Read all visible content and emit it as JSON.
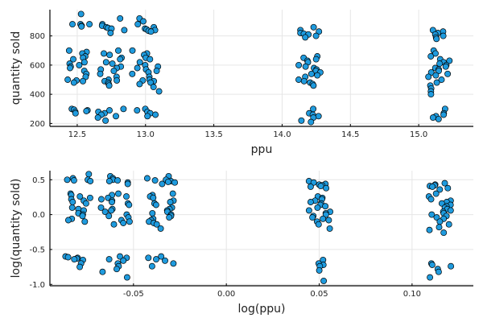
{
  "colors": {
    "marker": "#1f9bde",
    "marker_edge": "#000000",
    "grid": "#e6e6e6"
  },
  "chart_data": [
    {
      "type": "scatter",
      "title": "",
      "xlabel": "ppu",
      "ylabel": "quantity sold",
      "xlim": [
        12.3,
        15.4
      ],
      "ylim": [
        180,
        980
      ],
      "xticks": [
        12.5,
        13.0,
        13.5,
        14.0,
        14.5,
        15.0
      ],
      "xtick_labels": [
        "12.5",
        "13.0",
        "13.5",
        "14.0",
        "14.5",
        "15.0"
      ],
      "yticks": [
        200,
        400,
        600,
        800
      ],
      "ytick_labels": [
        "200",
        "400",
        "600",
        "800"
      ],
      "grid": true,
      "legend": "none",
      "point_groups": [
        {
          "cx": 12.5,
          "xs": 0.09,
          "ys": [
            950,
            880,
            880,
            880,
            870,
            865,
            700,
            690,
            680,
            660,
            650,
            640,
            620,
            610,
            600,
            590,
            580,
            560,
            540,
            520,
            500,
            495,
            490,
            480,
            300,
            295,
            290,
            285,
            280,
            270
          ]
        },
        {
          "cx": 12.75,
          "xs": 0.1,
          "ys": [
            920,
            880,
            870,
            860,
            855,
            850,
            840,
            820,
            700,
            680,
            670,
            650,
            640,
            620,
            610,
            590,
            580,
            570,
            560,
            540,
            520,
            500,
            495,
            490,
            480,
            470,
            460,
            300,
            290,
            280,
            270,
            260,
            250,
            240,
            220
          ]
        },
        {
          "cx": 13.0,
          "xs": 0.1,
          "ys": [
            920,
            900,
            880,
            860,
            850,
            845,
            840,
            835,
            830,
            700,
            680,
            670,
            650,
            640,
            620,
            600,
            590,
            580,
            570,
            560,
            550,
            540,
            520,
            500,
            495,
            490,
            480,
            470,
            450,
            420,
            300,
            290,
            280,
            270,
            260,
            250
          ]
        },
        {
          "cx": 14.2,
          "xs": 0.08,
          "ys": [
            860,
            840,
            830,
            820,
            815,
            810,
            800,
            790,
            660,
            650,
            640,
            630,
            620,
            600,
            590,
            580,
            570,
            560,
            550,
            540,
            530,
            520,
            500,
            490,
            480,
            470,
            460,
            300,
            270,
            260,
            250,
            240,
            220,
            210
          ]
        },
        {
          "cx": 15.15,
          "xs": 0.08,
          "ys": [
            840,
            830,
            820,
            810,
            800,
            790,
            780,
            700,
            680,
            660,
            640,
            630,
            620,
            610,
            600,
            590,
            580,
            570,
            560,
            550,
            540,
            530,
            520,
            500,
            480,
            460,
            440,
            420,
            400,
            300,
            270,
            260,
            250,
            240,
            230
          ]
        }
      ]
    },
    {
      "type": "scatter",
      "title": "",
      "xlabel": "log(ppu)",
      "ylabel": "log(quantity sold)",
      "xlim": [
        -0.095,
        0.133
      ],
      "ylim": [
        -1.02,
        0.63
      ],
      "xticks": [
        -0.05,
        0.0,
        0.05,
        0.1
      ],
      "xtick_labels": [
        "-0.05",
        "0.00",
        "0.05",
        "0.10"
      ],
      "yticks": [
        -1.0,
        -0.5,
        0.0,
        0.5
      ],
      "ytick_labels": [
        "-1.0",
        "-0.5",
        "0.0",
        "0.5"
      ],
      "grid": true,
      "legend": "none",
      "point_groups": [
        {
          "cx": -0.08,
          "xs": 0.007,
          "ys": [
            0.58,
            0.52,
            0.5,
            0.5,
            0.49,
            0.48,
            0.3,
            0.28,
            0.26,
            0.24,
            0.22,
            0.2,
            0.18,
            0.16,
            0.1,
            0.08,
            0.06,
            0.02,
            0.0,
            -0.02,
            -0.06,
            -0.08,
            -0.1,
            -0.6,
            -0.61,
            -0.62,
            -0.63,
            -0.64,
            -0.65,
            -0.7,
            -0.75
          ]
        },
        {
          "cx": -0.06,
          "xs": 0.008,
          "ys": [
            0.55,
            0.52,
            0.5,
            0.49,
            0.48,
            0.46,
            0.44,
            0.3,
            0.28,
            0.26,
            0.24,
            0.22,
            0.2,
            0.18,
            0.16,
            0.14,
            0.1,
            0.08,
            0.06,
            0.04,
            0.0,
            -0.02,
            -0.04,
            -0.08,
            -0.1,
            -0.12,
            -0.14,
            -0.6,
            -0.62,
            -0.64,
            -0.66,
            -0.7,
            -0.74,
            -0.78,
            -0.82,
            -0.9
          ]
        },
        {
          "cx": -0.035,
          "xs": 0.008,
          "ys": [
            0.55,
            0.52,
            0.5,
            0.49,
            0.48,
            0.47,
            0.46,
            0.44,
            0.3,
            0.28,
            0.26,
            0.24,
            0.2,
            0.18,
            0.16,
            0.14,
            0.1,
            0.08,
            0.06,
            0.04,
            0.02,
            0.0,
            -0.02,
            -0.04,
            -0.06,
            -0.08,
            -0.1,
            -0.12,
            -0.14,
            -0.2,
            -0.6,
            -0.62,
            -0.64,
            -0.66,
            -0.7,
            -0.74
          ]
        },
        {
          "cx": 0.05,
          "xs": 0.006,
          "ys": [
            0.48,
            0.46,
            0.44,
            0.43,
            0.42,
            0.41,
            0.4,
            0.38,
            0.26,
            0.24,
            0.22,
            0.2,
            0.18,
            0.16,
            0.14,
            0.12,
            0.1,
            0.06,
            0.04,
            0.02,
            0.0,
            -0.02,
            -0.04,
            -0.06,
            -0.08,
            -0.1,
            -0.14,
            -0.2,
            -0.65,
            -0.7,
            -0.72,
            -0.74,
            -0.8,
            -0.95
          ]
        },
        {
          "cx": 0.115,
          "xs": 0.006,
          "ys": [
            0.45,
            0.43,
            0.42,
            0.41,
            0.4,
            0.38,
            0.36,
            0.3,
            0.26,
            0.22,
            0.2,
            0.18,
            0.16,
            0.14,
            0.12,
            0.1,
            0.08,
            0.06,
            0.04,
            0.02,
            0.0,
            -0.02,
            -0.04,
            -0.06,
            -0.1,
            -0.14,
            -0.18,
            -0.22,
            -0.26,
            -0.7,
            -0.72,
            -0.74,
            -0.78,
            -0.82,
            -0.9
          ]
        }
      ]
    }
  ]
}
